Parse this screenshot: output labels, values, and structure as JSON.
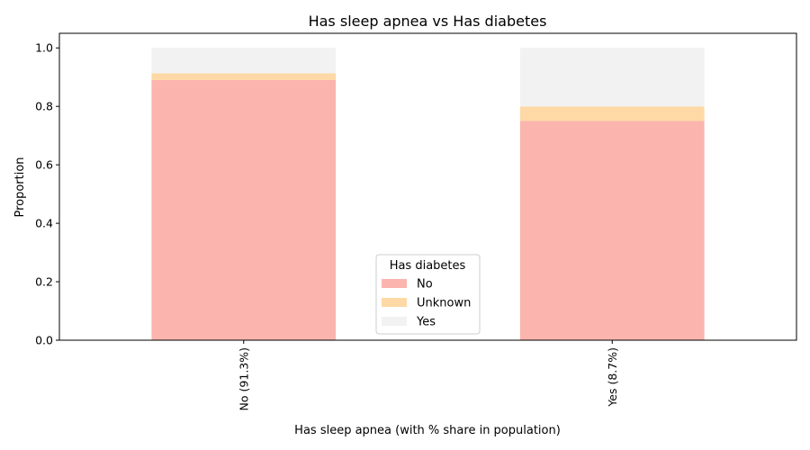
{
  "chart_data": {
    "type": "bar",
    "stacked": true,
    "title": "Has sleep apnea vs Has diabetes",
    "xlabel": "Has sleep apnea (with % share in population)",
    "ylabel": "Proportion",
    "ylim": [
      0,
      1.05
    ],
    "yticks": [
      "0.0",
      "0.2",
      "0.4",
      "0.6",
      "0.8",
      "1.0"
    ],
    "categories": [
      "No (91.3%)",
      "Yes (8.7%)"
    ],
    "series": [
      {
        "name": "No",
        "color": "#fbb4ae",
        "values": [
          0.89,
          0.75
        ]
      },
      {
        "name": "Unknown",
        "color": "#fed9a6",
        "values": [
          0.023,
          0.05
        ]
      },
      {
        "name": "Yes",
        "color": "#f2f2f2",
        "values": [
          0.087,
          0.2
        ]
      }
    ],
    "legend": {
      "title": "Has diabetes",
      "placement": "bottom-center"
    },
    "grid": false
  }
}
